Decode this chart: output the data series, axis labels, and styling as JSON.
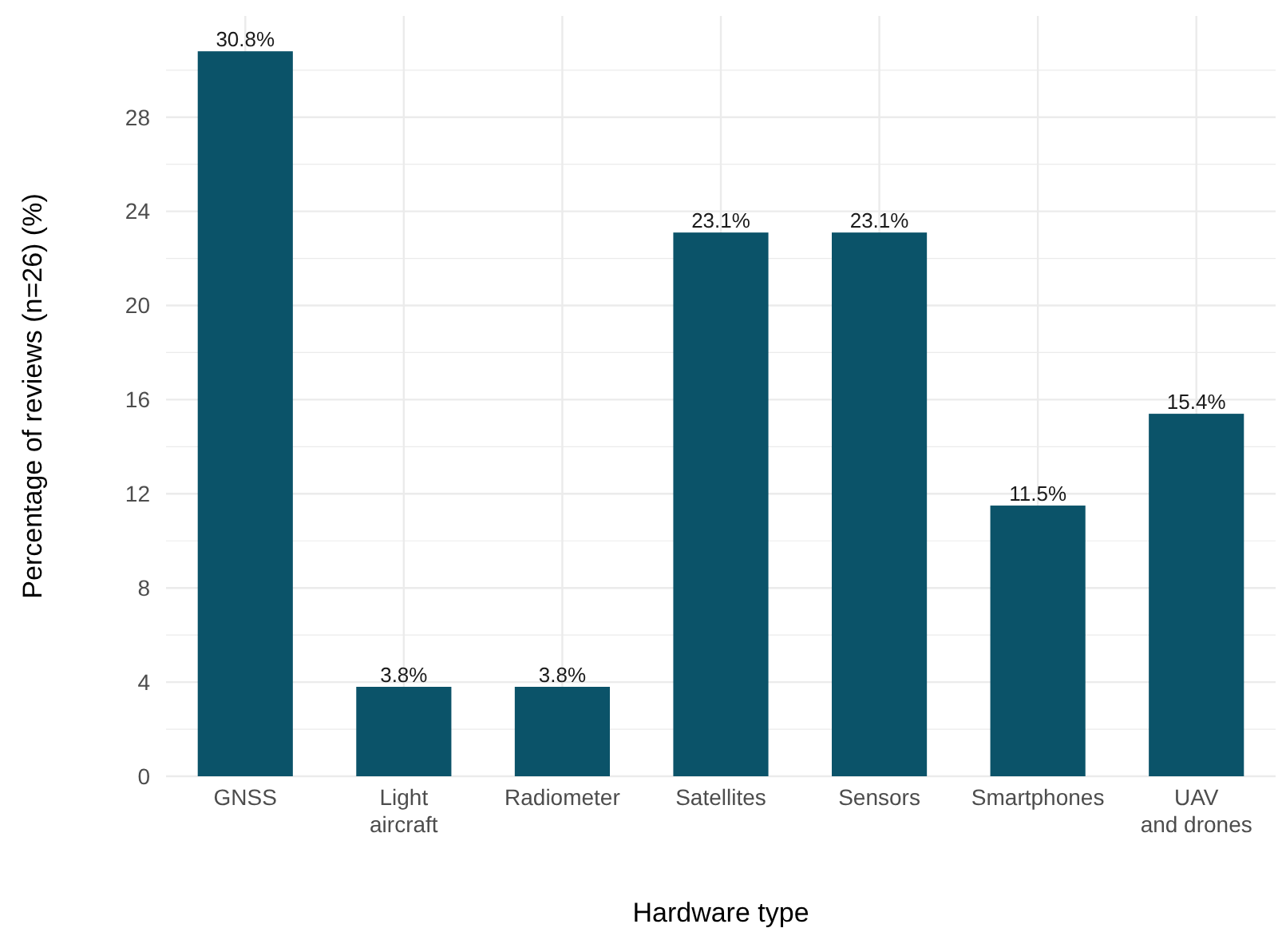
{
  "chart_data": {
    "type": "bar",
    "xlabel": "Hardware type",
    "ylabel": "Percentage of reviews (n=26) (%)",
    "categories": [
      "GNSS",
      "Light\naircraft",
      "Radiometer",
      "Satellites",
      "Sensors",
      "Smartphones",
      "UAV\nand drones"
    ],
    "values": [
      30.8,
      3.8,
      3.8,
      23.1,
      23.1,
      11.5,
      15.4
    ],
    "value_labels": [
      "30.8%",
      "3.8%",
      "3.8%",
      "23.1%",
      "23.1%",
      "11.5%",
      "15.4%"
    ],
    "color": "#0b5369",
    "ylim": [
      0,
      32.3
    ],
    "yticks": [
      0,
      4,
      8,
      12,
      16,
      20,
      24,
      28
    ],
    "grid": true
  }
}
